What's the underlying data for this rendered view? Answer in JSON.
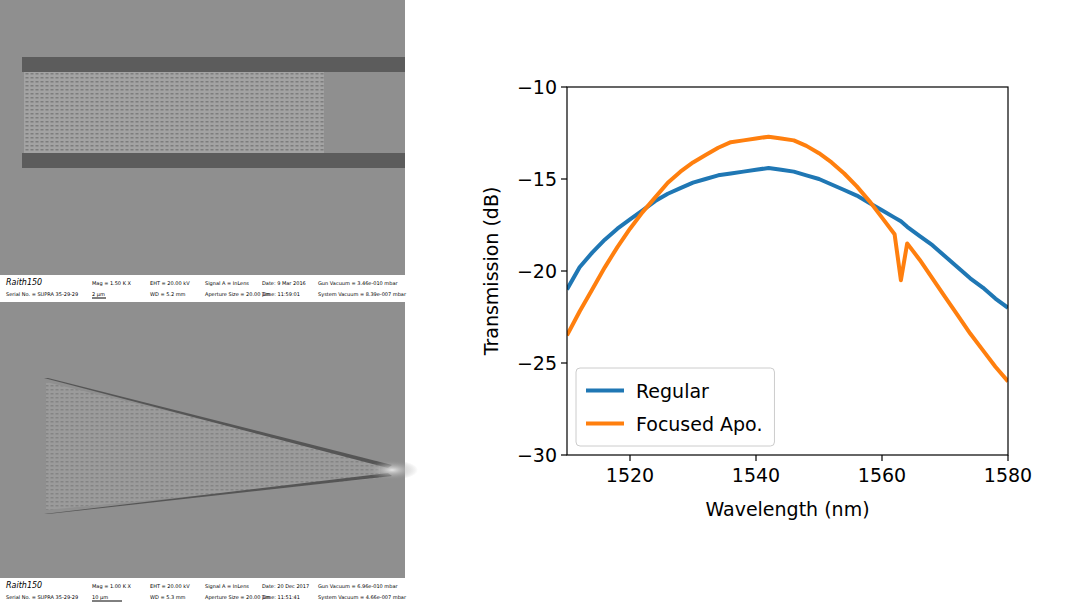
{
  "chart_data": {
    "type": "line",
    "x_label": "Wavelength (nm)",
    "y_label": "Transmission (dB)",
    "x": [
      1510,
      1512,
      1514,
      1516,
      1518,
      1520,
      1522,
      1524,
      1526,
      1528,
      1530,
      1532,
      1534,
      1536,
      1538,
      1540,
      1542,
      1544,
      1546,
      1548,
      1550,
      1552,
      1554,
      1556,
      1558,
      1560,
      1562,
      1563,
      1564,
      1566,
      1568,
      1570,
      1572,
      1574,
      1576,
      1578,
      1580
    ],
    "series": [
      {
        "name": "Regular",
        "color": "#1f77b4",
        "values": [
          -21.0,
          -19.8,
          -19.0,
          -18.3,
          -17.7,
          -17.2,
          -16.7,
          -16.2,
          -15.8,
          -15.5,
          -15.2,
          -15.0,
          -14.8,
          -14.7,
          -14.6,
          -14.5,
          -14.4,
          -14.5,
          -14.6,
          -14.8,
          -15.0,
          -15.3,
          -15.6,
          -15.9,
          -16.3,
          -16.7,
          -17.1,
          -17.3,
          -17.6,
          -18.1,
          -18.6,
          -19.2,
          -19.8,
          -20.4,
          -20.9,
          -21.5,
          -22.0
        ]
      },
      {
        "name": "Focused Apo.",
        "color": "#ff7f0e",
        "values": [
          -23.5,
          -22.2,
          -21.0,
          -19.8,
          -18.7,
          -17.7,
          -16.8,
          -16.0,
          -15.2,
          -14.6,
          -14.1,
          -13.7,
          -13.3,
          -13.0,
          -12.9,
          -12.8,
          -12.7,
          -12.8,
          -12.9,
          -13.2,
          -13.6,
          -14.1,
          -14.7,
          -15.4,
          -16.2,
          -17.1,
          -18.0,
          -20.5,
          -18.5,
          -19.4,
          -20.4,
          -21.4,
          -22.4,
          -23.4,
          -24.3,
          -25.2,
          -26.0
        ]
      }
    ],
    "xlim": [
      1510,
      1580
    ],
    "xticks": [
      1520,
      1540,
      1560,
      1580
    ],
    "ylim": [
      -30,
      -10
    ],
    "yticks": [
      {
        "value": -30,
        "label": "−30"
      },
      {
        "value": -25,
        "label": "−25"
      },
      {
        "value": -20,
        "label": "−20"
      },
      {
        "value": -15,
        "label": "−15"
      },
      {
        "value": -10,
        "label": "−10"
      }
    ],
    "legend": "lower left",
    "grid": false
  },
  "sem_images": [
    {
      "info_rows": [
        [
          "Raith150",
          "Mag =  1.50 K X",
          "EHT = 20.00 kV",
          "Signal A = InLens",
          "Date: 9 Mar 2016",
          "Gun Vacuum = 3.46e-010 mbar"
        ],
        [
          "Serial No. = SUPRA 35-29-29",
          "2 µm",
          "WD = 5.2 mm",
          "Aperture Size = 20.00 µm",
          "Time: 11:59:01",
          "System Vacuum = 8.39e-007 mbar"
        ]
      ]
    },
    {
      "info_rows": [
        [
          "Raith150",
          "Mag =  1.00 K X",
          "EHT = 20.00 kV",
          "Signal A = InLens",
          "Date: 20 Dec 2017",
          "Gun Vacuum = 6.96e-010 mbar"
        ],
        [
          "Serial No. = SUPRA 35-29-29",
          "10 µm",
          "WD = 5.3 mm",
          "Aperture Size = 20.00 µm",
          "Time: 11:51:41",
          "System Vacuum = 4.66e-007 mbar"
        ]
      ]
    }
  ]
}
